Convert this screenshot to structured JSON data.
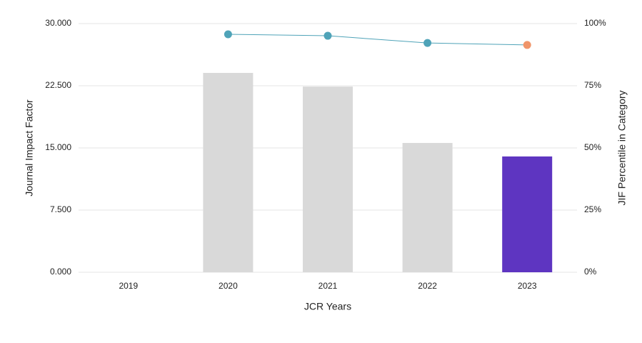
{
  "chart_data": {
    "type": "bar",
    "x_label": "JCR Years",
    "y_label": "Journal Impact Factor",
    "y2_label": "JIF Percentile in Category",
    "categories": [
      "2019",
      "2020",
      "2021",
      "2022",
      "2023"
    ],
    "series": [
      {
        "type": "bar",
        "colors": [
          "#d9d9d9",
          "#d9d9d9",
          "#d9d9d9",
          "#d9d9d9",
          "#5e35c1"
        ],
        "values": [
          null,
          24.05,
          22.4,
          15.6,
          13.97
        ]
      },
      {
        "type": "line",
        "axis": "y2",
        "color": "#4fa3b8",
        "colors": [
          "#4fa3b8",
          "#4fa3b8",
          "#4fa3b8",
          "#4fa3b8",
          "#f0956a"
        ],
        "values": [
          null,
          95.7,
          95.1,
          92.2,
          91.4
        ]
      }
    ],
    "ylim": [
      0,
      30
    ],
    "yticks": [
      {
        "value": 0,
        "label": "0.000"
      },
      {
        "value": 7.5,
        "label": "7.500"
      },
      {
        "value": 15,
        "label": "15.000"
      },
      {
        "value": 22.5,
        "label": "22.500"
      },
      {
        "value": 30,
        "label": "30.000"
      }
    ],
    "y2lim": [
      0,
      100
    ],
    "y2ticks": [
      {
        "value": 0,
        "label": "0%"
      },
      {
        "value": 25,
        "label": "25%"
      },
      {
        "value": 50,
        "label": "50%"
      },
      {
        "value": 75,
        "label": "75%"
      },
      {
        "value": 100,
        "label": "100%"
      }
    ],
    "grid": true
  }
}
